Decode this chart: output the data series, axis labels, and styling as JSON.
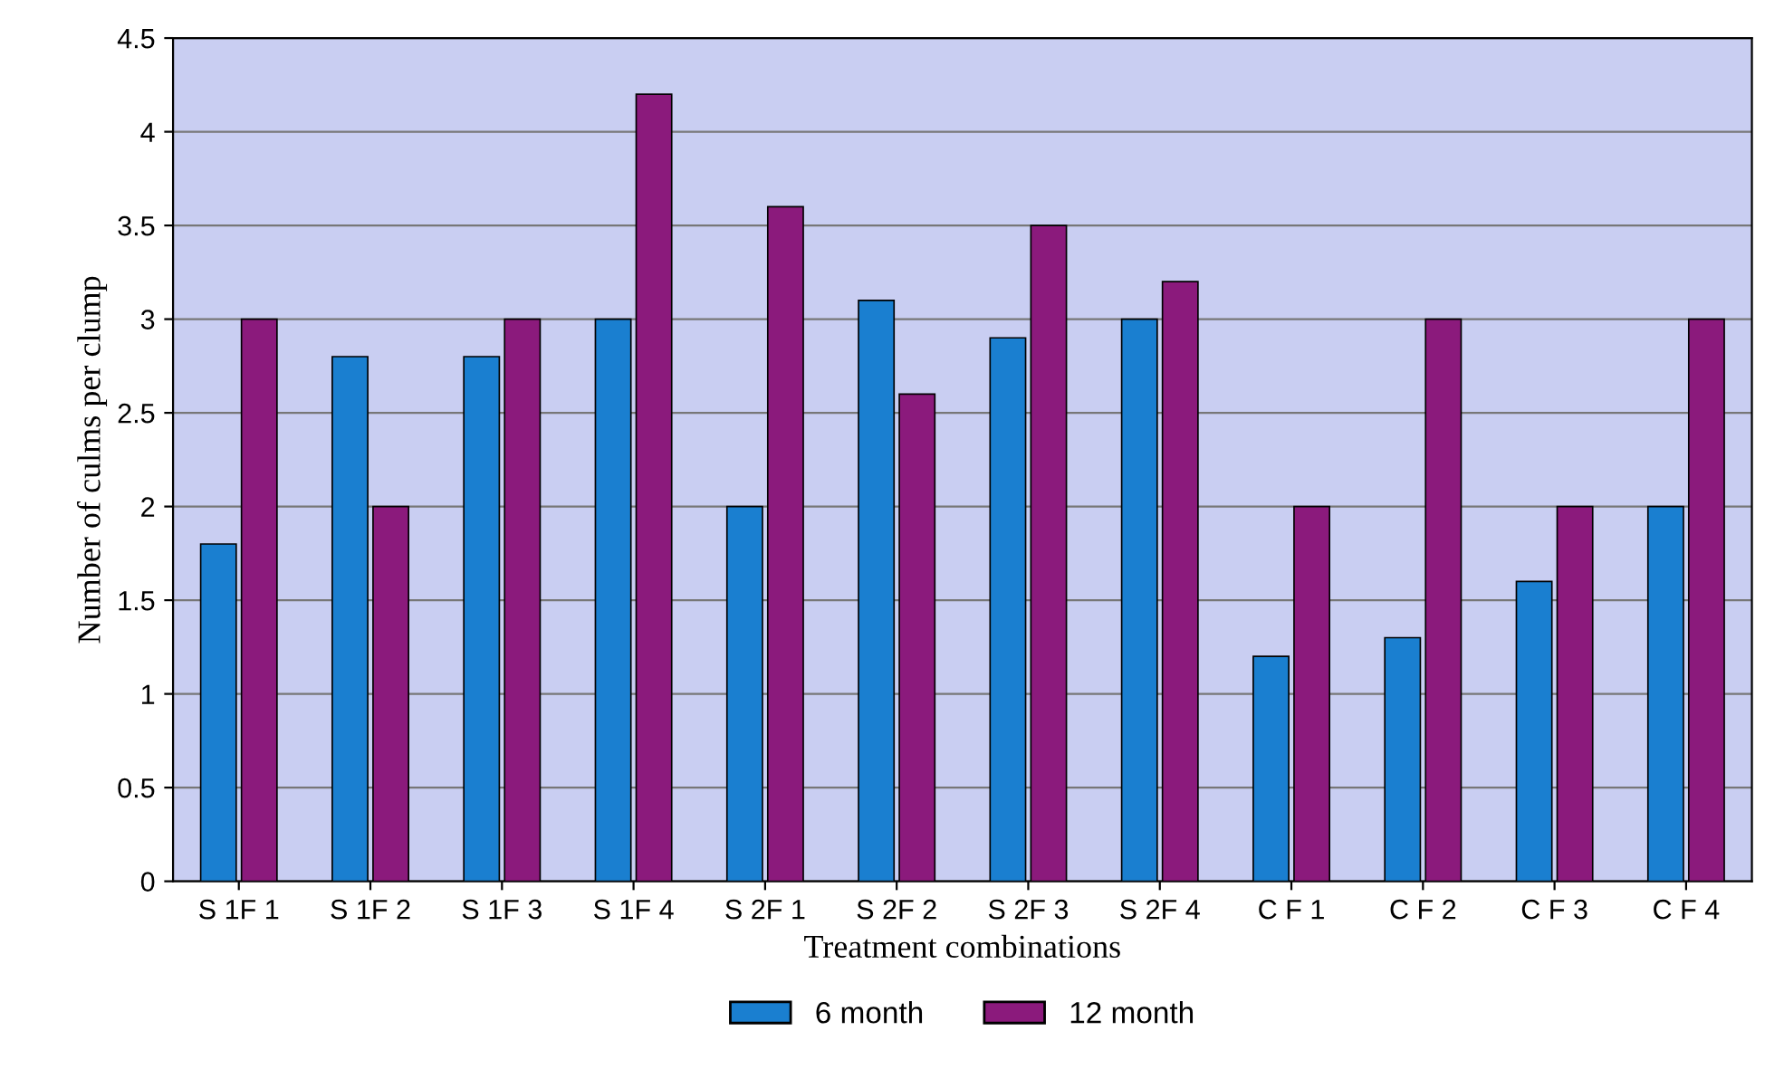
{
  "chart_data": {
    "type": "bar",
    "xlabel": "Treatment combinations",
    "ylabel": "Number of culms per clump",
    "categories": [
      "S 1F 1",
      "S 1F 2",
      "S 1F 3",
      "S 1F 4",
      "S 2F 1",
      "S 2F 2",
      "S 2F 3",
      "S 2F 4",
      "C F 1",
      "C F 2",
      "C F 3",
      "C F 4"
    ],
    "series": [
      {
        "name": "6 month",
        "color": "#1a7fd0",
        "values": [
          1.8,
          2.8,
          2.8,
          3.0,
          2.0,
          3.1,
          2.9,
          3.0,
          1.2,
          1.3,
          1.6,
          2.0
        ]
      },
      {
        "name": "12 month",
        "color": "#8b1a7c",
        "values": [
          3.0,
          2.0,
          3.0,
          4.2,
          3.6,
          2.6,
          3.5,
          3.2,
          2.0,
          3.0,
          2.0,
          3.0
        ]
      }
    ],
    "ylim": [
      0,
      4.5
    ],
    "yticks": [
      0,
      0.5,
      1,
      1.5,
      2,
      2.5,
      3,
      3.5,
      4,
      4.5
    ],
    "grid": "y",
    "legend": "bottom"
  }
}
